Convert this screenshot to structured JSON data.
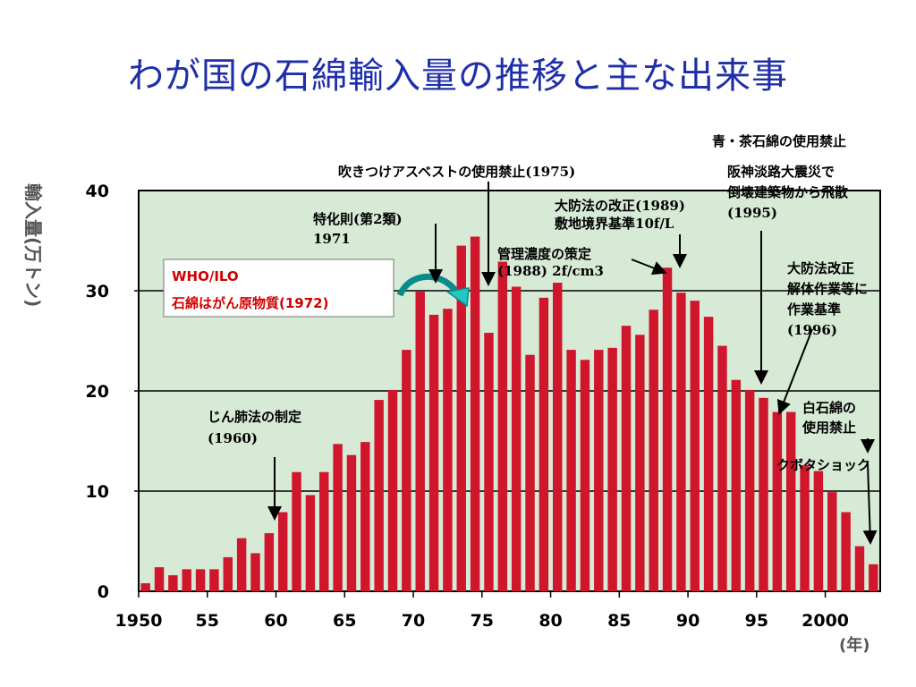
{
  "title": "わが国の石綿輸入量の推移と主な出来事",
  "chart_data": {
    "type": "bar",
    "ylabel": "輸入量(万トン)",
    "xlabel": "(年)",
    "ylim": [
      0,
      40
    ],
    "xlim": [
      1950,
      2004
    ],
    "y_ticks": [
      "0",
      "10",
      "20",
      "30",
      "40"
    ],
    "x_ticks": [
      "1950",
      "55",
      "60",
      "65",
      "70",
      "75",
      "80",
      "85",
      "90",
      "95",
      "2000"
    ],
    "grid": true,
    "background": "#d7ead6",
    "bar_color": "#d0162d",
    "x": [
      1950,
      1951,
      1952,
      1953,
      1954,
      1955,
      1956,
      1957,
      1958,
      1959,
      1960,
      1961,
      1962,
      1963,
      1964,
      1965,
      1966,
      1967,
      1968,
      1969,
      1970,
      1971,
      1972,
      1973,
      1974,
      1975,
      1976,
      1977,
      1978,
      1979,
      1980,
      1981,
      1982,
      1983,
      1984,
      1985,
      1986,
      1987,
      1988,
      1989,
      1990,
      1991,
      1992,
      1993,
      1994,
      1995,
      1996,
      1997,
      1998,
      1999,
      2000,
      2001,
      2002,
      2003
    ],
    "values": [
      0.8,
      2.4,
      1.6,
      2.2,
      2.2,
      2.2,
      3.4,
      5.3,
      3.8,
      5.8,
      7.9,
      11.9,
      9.6,
      11.9,
      14.7,
      13.6,
      14.9,
      19.1,
      20.1,
      24.1,
      29.9,
      27.6,
      28.2,
      34.5,
      35.4,
      25.8,
      32.9,
      30.4,
      23.6,
      29.3,
      30.8,
      24.1,
      23.1,
      24.1,
      24.3,
      26.5,
      25.6,
      28.1,
      32.3,
      29.8,
      29.0,
      27.4,
      24.5,
      21.1,
      20.1,
      19.3,
      17.9,
      17.9,
      12.6,
      12.0,
      9.9,
      7.9,
      4.5,
      2.7
    ],
    "annotations": [
      {
        "lines": [
          "WHO/ILO",
          "石綿はがん原物質(1972)"
        ]
      },
      {
        "lines": [
          "特化則(第2類)",
          "1971"
        ]
      },
      {
        "lines": [
          "吹きつけアスベストの使用禁止(1975)"
        ]
      },
      {
        "lines": [
          "大防法の改正(1989)",
          "敷地境界基準10f/L"
        ]
      },
      {
        "lines": [
          "管理濃度の策定",
          "(1988)  2f/cm3"
        ]
      },
      {
        "lines": [
          "青・茶石綿の使用禁止"
        ]
      },
      {
        "lines": [
          "阪神淡路大震災で",
          "倒壊建築物から飛散",
          "(1995)"
        ]
      },
      {
        "lines": [
          "大防法改正",
          "解体作業等に",
          "作業基準",
          "(1996)"
        ]
      },
      {
        "lines": [
          "白石綿の",
          "使用禁止"
        ]
      },
      {
        "lines": [
          "クボタショック"
        ]
      },
      {
        "lines": [
          "じん肺法の制定",
          "(1960)"
        ]
      }
    ]
  }
}
